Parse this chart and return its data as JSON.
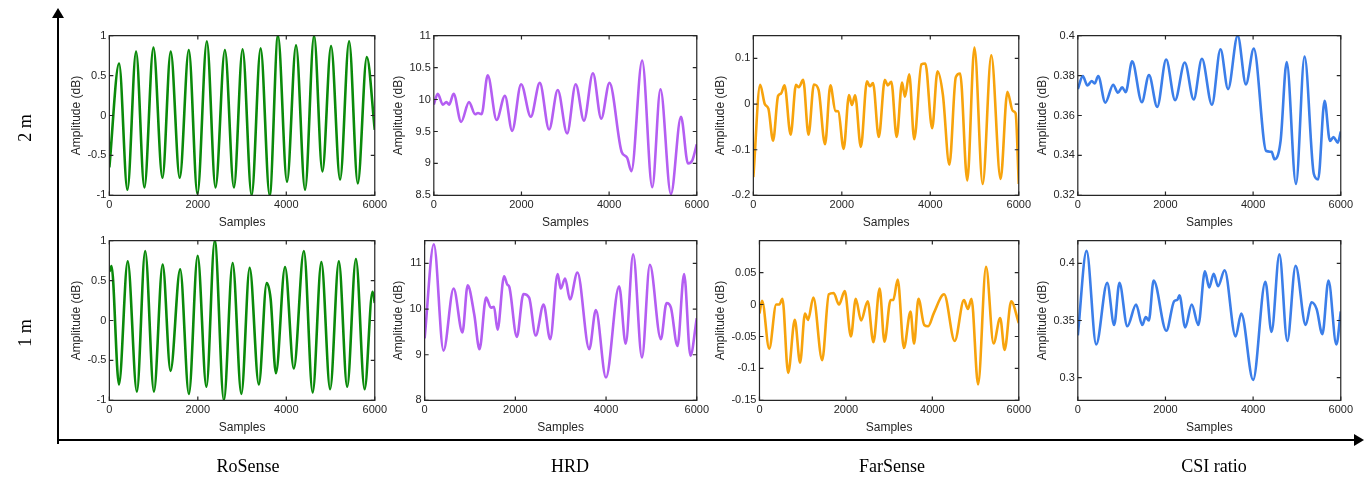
{
  "chart_data": [
    {
      "type": "line",
      "xlabel": "Samples",
      "ylabel": "Amplitude (dB)",
      "color": "#0a8a0a",
      "xlim": [
        0,
        6000
      ],
      "xticks": [
        0,
        2000,
        4000,
        6000
      ],
      "ylim": [
        -1,
        1
      ],
      "yticks": [
        -1,
        -0.5,
        0,
        0.5,
        1
      ],
      "annotations": [
        "2 m"
      ],
      "x": [
        0,
        220,
        408,
        604,
        792,
        996,
        1200,
        1387,
        1591,
        1796,
        1991,
        2204,
        2400,
        2612,
        2816,
        3012,
        3216,
        3420,
        3624,
        3812,
        4016,
        4220,
        4424,
        4628,
        4816,
        5012,
        5216,
        5420,
        5616,
        5820,
        6000
      ],
      "values": [
        -0.65,
        0.65,
        -0.93,
        0.8,
        -0.9,
        0.85,
        -0.78,
        0.8,
        -0.78,
        0.82,
        -0.98,
        0.93,
        -0.9,
        0.82,
        -0.9,
        0.83,
        -1.0,
        0.84,
        -1.0,
        1.0,
        -0.83,
        0.88,
        -0.93,
        1.0,
        -0.7,
        0.87,
        -0.8,
        0.93,
        -0.85,
        0.73,
        -0.18
      ]
    },
    {
      "type": "line",
      "xlabel": "Samples",
      "ylabel": "Amplitude (dB)",
      "color": "#b45ef2",
      "xlim": [
        0,
        6000
      ],
      "xticks": [
        0,
        2000,
        4000,
        6000
      ],
      "ylim": [
        8.5,
        11
      ],
      "yticks": [
        8.5,
        9,
        9.5,
        10,
        10.5,
        11
      ],
      "x": [
        0,
        90,
        205,
        287,
        352,
        451,
        623,
        803,
        943,
        1008,
        1090,
        1230,
        1434,
        1623,
        1787,
        1992,
        2213,
        2418,
        2631,
        2828,
        3041,
        3238,
        3426,
        3631,
        3820,
        4008,
        4287,
        4410,
        4508,
        4754,
        4984,
        5172,
        5410,
        5640,
        5800,
        5900,
        6000
      ],
      "values": [
        9.92,
        10.09,
        9.92,
        9.96,
        9.92,
        10.09,
        9.65,
        9.96,
        9.77,
        9.79,
        9.77,
        10.38,
        9.68,
        10.06,
        9.51,
        10.24,
        9.73,
        10.26,
        9.53,
        10.15,
        9.47,
        10.24,
        9.67,
        10.41,
        9.7,
        10.26,
        9.18,
        9.09,
        8.88,
        10.61,
        8.63,
        10.16,
        8.52,
        9.73,
        9.0,
        9.05,
        9.3
      ]
    },
    {
      "type": "line",
      "xlabel": "Samples",
      "ylabel": "Amplitude (dB)",
      "color": "#f7a30c",
      "xlim": [
        0,
        6000
      ],
      "xticks": [
        0,
        2000,
        4000,
        6000
      ],
      "ylim": [
        -0.2,
        0.15
      ],
      "yticks": [
        -0.2,
        -0.1,
        0,
        0.1
      ],
      "x": [
        0,
        154,
        259,
        340,
        446,
        559,
        624,
        705,
        843,
        964,
        1029,
        1126,
        1247,
        1369,
        1474,
        1620,
        1742,
        1855,
        1920,
        2041,
        2163,
        2228,
        2300,
        2430,
        2568,
        2633,
        2705,
        2835,
        2973,
        3038,
        3119,
        3240,
        3362,
        3426,
        3524,
        3637,
        3799,
        3888,
        4042,
        4163,
        4285,
        4431,
        4577,
        4674,
        4836,
        4998,
        5184,
        5379,
        5589,
        5743,
        5865,
        5929,
        6000
      ],
      "values": [
        -0.16,
        0.042,
        0.0,
        -0.01,
        -0.08,
        0.018,
        0.023,
        0.041,
        -0.067,
        0.042,
        0.037,
        0.053,
        -0.067,
        0.043,
        0.031,
        -0.088,
        0.041,
        -0.015,
        -0.016,
        -0.098,
        0.02,
        -0.002,
        0.019,
        -0.094,
        0.05,
        0.039,
        0.046,
        -0.072,
        0.053,
        0.041,
        0.049,
        -0.072,
        0.047,
        0.016,
        0.065,
        -0.077,
        0.087,
        0.089,
        -0.053,
        0.072,
        0.02,
        -0.133,
        0.059,
        0.067,
        -0.167,
        0.124,
        -0.175,
        0.107,
        -0.164,
        0.027,
        -0.015,
        -0.02,
        -0.175
      ]
    },
    {
      "type": "line",
      "xlabel": "Samples",
      "ylabel": "Amplitude (dB)",
      "color": "#3b7ee9",
      "xlim": [
        0,
        6000
      ],
      "xticks": [
        0,
        2000,
        4000,
        6000
      ],
      "ylim": [
        0.32,
        0.4
      ],
      "yticks": [
        0.32,
        0.34,
        0.36,
        0.38,
        0.4
      ],
      "x": [
        0,
        114,
        220,
        318,
        384,
        465,
        628,
        808,
        914,
        1012,
        1093,
        1240,
        1461,
        1624,
        1812,
        2016,
        2220,
        2440,
        2644,
        2832,
        3060,
        3256,
        3428,
        3648,
        3836,
        4015,
        4300,
        4423,
        4488,
        4627,
        4766,
        4978,
        5174,
        5386,
        5484,
        5631,
        5753,
        5835,
        5933,
        6000
      ],
      "values": [
        0.3732,
        0.3797,
        0.375,
        0.3773,
        0.376,
        0.3797,
        0.3664,
        0.3754,
        0.3714,
        0.3741,
        0.3717,
        0.3871,
        0.3667,
        0.3802,
        0.3643,
        0.388,
        0.3677,
        0.3865,
        0.368,
        0.3884,
        0.3654,
        0.3932,
        0.3732,
        0.4,
        0.3756,
        0.3935,
        0.3422,
        0.3418,
        0.3381,
        0.3473,
        0.3867,
        0.3257,
        0.3895,
        0.3307,
        0.328,
        0.3673,
        0.3473,
        0.3492,
        0.3464,
        0.352
      ]
    },
    {
      "type": "line",
      "xlabel": "Samples",
      "ylabel": "Amplitude (dB)",
      "color": "#0a8a0a",
      "xlim": [
        0,
        6000
      ],
      "xticks": [
        0,
        2000,
        4000,
        6000
      ],
      "ylim": [
        -1,
        1
      ],
      "yticks": [
        -1,
        -0.5,
        0,
        0.5,
        1
      ],
      "annotations": [
        "1 m",
        "RoSense"
      ],
      "x": [
        0,
        49,
        217,
        415,
        622,
        810,
        1008,
        1205,
        1383,
        1601,
        1798,
        1996,
        2194,
        2382,
        2589,
        2787,
        2984,
        3172,
        3379,
        3557,
        3646,
        3765,
        3972,
        4170,
        4398,
        4596,
        4793,
        4991,
        5188,
        5376,
        5574,
        5771,
        5949,
        6000
      ],
      "values": [
        0.61,
        0.68,
        -0.8,
        0.74,
        -0.89,
        0.87,
        -0.89,
        0.7,
        -0.63,
        0.64,
        -0.92,
        0.81,
        -0.83,
        1.0,
        -1.0,
        0.72,
        -0.92,
        0.66,
        -0.8,
        0.47,
        0.27,
        -0.66,
        0.67,
        -0.6,
        0.87,
        -0.9,
        0.73,
        -0.86,
        0.74,
        -0.83,
        0.77,
        -0.86,
        0.36,
        0.22
      ]
    },
    {
      "type": "line",
      "xlabel": "Samples",
      "ylabel": "Amplitude (dB)",
      "color": "#b45ef2",
      "xlim": [
        0,
        6000
      ],
      "xticks": [
        0,
        2000,
        4000,
        6000
      ],
      "ylim": [
        8,
        11.5
      ],
      "yticks": [
        8,
        9,
        10,
        11
      ],
      "annotations": [
        "HRD"
      ],
      "x": [
        0,
        203,
        416,
        639,
        833,
        949,
        1094,
        1210,
        1355,
        1462,
        1529,
        1607,
        1752,
        1820,
        1868,
        2033,
        2178,
        2304,
        2449,
        2623,
        2768,
        2933,
        3000,
        3098,
        3204,
        3369,
        3630,
        3775,
        3998,
        4288,
        4433,
        4598,
        4792,
        4966,
        5208,
        5334,
        5430,
        5575,
        5721,
        5860,
        6000
      ],
      "values": [
        9.36,
        11.42,
        9.09,
        10.45,
        9.49,
        10.52,
        9.88,
        9.12,
        10.25,
        10.03,
        10.05,
        9.55,
        10.72,
        10.54,
        10.48,
        9.39,
        10.33,
        10.25,
        9.42,
        10.1,
        9.34,
        10.77,
        10.45,
        10.67,
        10.21,
        10.8,
        9.12,
        9.98,
        8.5,
        10.5,
        9.24,
        11.2,
        8.94,
        10.97,
        9.34,
        10.13,
        10.03,
        9.19,
        10.77,
        8.98,
        9.8
      ]
    },
    {
      "type": "line",
      "xlabel": "Samples",
      "ylabel": "Amplitude (dB)",
      "color": "#f7a30c",
      "xlim": [
        0,
        6000
      ],
      "xticks": [
        0,
        2000,
        4000,
        6000
      ],
      "ylim": [
        -0.15,
        0.1
      ],
      "yticks": [
        -0.15,
        -0.1,
        -0.05,
        0,
        0.05
      ],
      "annotations": [
        "FarSense"
      ],
      "x": [
        0,
        61,
        225,
        388,
        460,
        531,
        664,
        818,
        940,
        1053,
        1124,
        1247,
        1451,
        1605,
        1717,
        1840,
        1973,
        2116,
        2228,
        2351,
        2504,
        2637,
        2780,
        2892,
        3035,
        3096,
        3199,
        3342,
        3495,
        3577,
        3679,
        3812,
        3904,
        4037,
        4272,
        4518,
        4732,
        4824,
        4906,
        5059,
        5243,
        5417,
        5570,
        5672,
        5825,
        6000
      ],
      "values": [
        -0.014,
        0.006,
        -0.069,
        0,
        0,
        0.009,
        -0.107,
        -0.024,
        -0.091,
        -0.014,
        -0.024,
        0.011,
        -0.087,
        0.016,
        0.018,
        0,
        0.021,
        -0.05,
        0.009,
        -0.025,
        0.005,
        -0.059,
        0.025,
        -0.058,
        0.007,
        0.007,
        0.039,
        -0.068,
        -0.011,
        -0.061,
        0.009,
        -0.032,
        -0.034,
        -0.013,
        0.016,
        -0.057,
        0.007,
        -0.007,
        0.009,
        -0.125,
        0.059,
        -0.061,
        -0.021,
        -0.071,
        0.005,
        -0.029
      ]
    },
    {
      "type": "line",
      "xlabel": "Samples",
      "ylabel": "Amplitude (dB)",
      "color": "#3b7ee9",
      "xlim": [
        0,
        6000
      ],
      "xticks": [
        0,
        2000,
        4000,
        6000
      ],
      "ylim": [
        0.28,
        0.42
      ],
      "yticks": [
        0.3,
        0.35,
        0.4
      ],
      "annotations": [
        "CSI ratio"
      ],
      "x": [
        0,
        200,
        420,
        670,
        830,
        950,
        1130,
        1330,
        1470,
        1550,
        1620,
        1730,
        2020,
        2200,
        2270,
        2320,
        2450,
        2600,
        2750,
        2900,
        3000,
        3100,
        3200,
        3350,
        3600,
        3730,
        4000,
        4280,
        4420,
        4600,
        4780,
        4970,
        5200,
        5330,
        5450,
        5580,
        5720,
        5900,
        6000
      ],
      "values": [
        0.337,
        0.411,
        0.329,
        0.383,
        0.346,
        0.383,
        0.345,
        0.364,
        0.346,
        0.353,
        0.35,
        0.385,
        0.341,
        0.367,
        0.368,
        0.372,
        0.344,
        0.364,
        0.346,
        0.393,
        0.379,
        0.391,
        0.38,
        0.394,
        0.336,
        0.356,
        0.298,
        0.384,
        0.34,
        0.408,
        0.332,
        0.398,
        0.346,
        0.366,
        0.36,
        0.338,
        0.385,
        0.329,
        0.358
      ]
    }
  ]
}
